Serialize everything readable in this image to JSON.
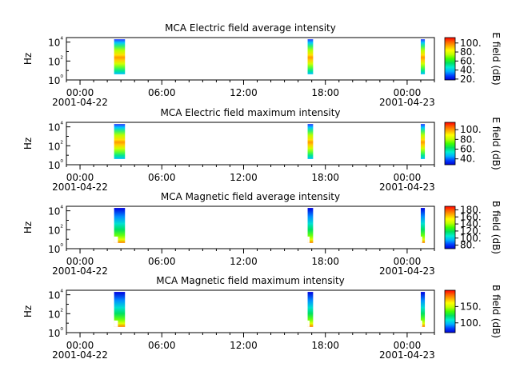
{
  "x_tick_labels": [
    "00:00",
    "06:00",
    "12:00",
    "18:00",
    "00:00"
  ],
  "x_tick_hours": [
    0,
    6,
    12,
    18,
    24
  ],
  "x_date_start": "2001-04-22",
  "x_date_end": "2001-04-23",
  "x_range_hours": [
    -1,
    26
  ],
  "colormap": [
    "#0000d0",
    "#0040ff",
    "#00b0ff",
    "#00f0d0",
    "#00e060",
    "#40ff00",
    "#c0ff00",
    "#ffff00",
    "#ffb000",
    "#ff6000",
    "#ff0000"
  ],
  "bursts": [
    {
      "start_hour": 2.5,
      "end_hour": 3.3
    },
    {
      "start_hour": 16.7,
      "end_hour": 17.1
    },
    {
      "start_hour": 25.0,
      "end_hour": 25.3
    }
  ],
  "chart_data": [
    {
      "type": "heatmap",
      "title": "MCA  Electric field average intensity",
      "ylabel": "Hz",
      "yscale": "log",
      "ylim": [
        1,
        30000
      ],
      "y_ticks": [
        1,
        100,
        10000
      ],
      "y_tick_labels": [
        "10⁰",
        "10²",
        "10⁴"
      ],
      "colorbar_label": "E field (dB)",
      "colorbar_range": [
        18,
        112
      ],
      "colorbar_ticks": [
        20,
        40,
        60,
        80,
        100
      ],
      "colorbar_tick_labels": [
        "20.",
        "40.",
        "60.",
        "80.",
        "100."
      ],
      "occupied_freq_range": [
        4,
        20000
      ]
    },
    {
      "type": "heatmap",
      "title": "MCA  Electric field maximum intensity",
      "ylabel": "Hz",
      "yscale": "log",
      "ylim": [
        1,
        30000
      ],
      "y_ticks": [
        1,
        100,
        10000
      ],
      "y_tick_labels": [
        "10⁰",
        "10²",
        "10⁴"
      ],
      "colorbar_label": "E field (dB)",
      "colorbar_range": [
        28,
        115
      ],
      "colorbar_ticks": [
        40,
        60,
        80,
        100
      ],
      "colorbar_tick_labels": [
        "40.",
        "60.",
        "80.",
        "100."
      ],
      "occupied_freq_range": [
        4,
        20000
      ]
    },
    {
      "type": "heatmap",
      "title": "MCA  Magnetic field average intensity",
      "ylabel": "Hz",
      "yscale": "log",
      "ylim": [
        1,
        30000
      ],
      "y_ticks": [
        1,
        100,
        10000
      ],
      "y_tick_labels": [
        "10⁰",
        "10²",
        "10⁴"
      ],
      "colorbar_label": "B field (dB)",
      "colorbar_range": [
        70,
        190
      ],
      "colorbar_ticks": [
        80,
        100,
        120,
        140,
        160,
        180
      ],
      "colorbar_tick_labels": [
        "80.",
        "100.",
        "120.",
        "140.",
        "160.",
        "180."
      ],
      "occupied_freq_range": [
        4,
        20000
      ]
    },
    {
      "type": "heatmap",
      "title": "MCA  Magnetic field maximum intensity",
      "ylabel": "Hz",
      "yscale": "log",
      "ylim": [
        1,
        30000
      ],
      "y_ticks": [
        1,
        100,
        10000
      ],
      "y_tick_labels": [
        "10⁰",
        "10²",
        "10⁴"
      ],
      "colorbar_label": "B field (dB)",
      "colorbar_range": [
        70,
        200
      ],
      "colorbar_ticks": [
        100,
        150
      ],
      "colorbar_tick_labels": [
        "100.",
        "150."
      ],
      "occupied_freq_range": [
        4,
        20000
      ]
    }
  ]
}
